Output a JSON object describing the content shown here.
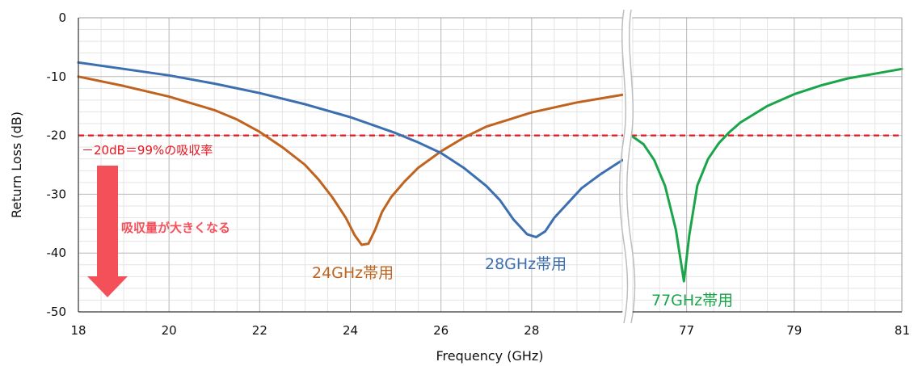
{
  "chart_data": {
    "type": "line",
    "xlabel": "Frequency (GHz)",
    "ylabel": "Return Loss (dB)",
    "ylim": [
      -50,
      0
    ],
    "yticks": [
      0,
      -10,
      -20,
      -30,
      -40,
      -50
    ],
    "xlim_left": [
      18,
      30
    ],
    "xlim_right": [
      76,
      81
    ],
    "xticks_left": [
      18,
      20,
      22,
      24,
      26,
      28
    ],
    "xticks_right": [
      77,
      79,
      81
    ],
    "axis_break": "wavy break between 30 and 76",
    "grid": true,
    "threshold": {
      "y": -20,
      "label": "－20dB＝99%の吸収率",
      "color": "#e8141c"
    },
    "annotation": {
      "text": "吸収量が大きくなる",
      "arrow": "down",
      "color": "#f4505a"
    },
    "series": [
      {
        "name": "24GHz帯用",
        "color": "#c0631e",
        "segment": "left",
        "x": [
          18,
          19,
          20,
          21,
          21.5,
          22,
          22.5,
          23,
          23.3,
          23.6,
          23.9,
          24.1,
          24.25,
          24.4,
          24.55,
          24.7,
          24.9,
          25.2,
          25.5,
          26,
          26.5,
          27,
          28,
          29,
          30
        ],
        "y": [
          -10,
          -11.6,
          -13.4,
          -15.7,
          -17.3,
          -19.4,
          -22,
          -25,
          -27.5,
          -30.5,
          -34,
          -37,
          -38.6,
          -38.4,
          -36,
          -33,
          -30.5,
          -27.8,
          -25.5,
          -22.7,
          -20.4,
          -18.5,
          -16.1,
          -14.4,
          -13.1
        ]
      },
      {
        "name": "28GHz帯用",
        "color": "#3c6fb0",
        "segment": "left",
        "x": [
          18,
          19,
          20,
          21,
          22,
          23,
          24,
          25,
          25.5,
          26,
          26.5,
          27,
          27.3,
          27.6,
          27.9,
          28.1,
          28.3,
          28.5,
          28.8,
          29.1,
          29.5,
          30
        ],
        "y": [
          -7.6,
          -8.7,
          -9.8,
          -11.2,
          -12.8,
          -14.7,
          -16.9,
          -19.6,
          -21.2,
          -23,
          -25.5,
          -28.6,
          -31,
          -34.3,
          -36.8,
          -37.3,
          -36.3,
          -34,
          -31.5,
          -29,
          -26.7,
          -24.2
        ]
      },
      {
        "name": "77GHz帯用",
        "color": "#1aa54a",
        "segment": "right",
        "x": [
          76,
          76.2,
          76.4,
          76.6,
          76.8,
          76.95,
          77.05,
          77.2,
          77.4,
          77.6,
          77.8,
          78,
          78.5,
          79,
          79.5,
          80,
          80.5,
          81
        ],
        "y": [
          -20.2,
          -21.5,
          -24.2,
          -28.6,
          -36,
          -44.8,
          -37,
          -28.5,
          -24,
          -21.3,
          -19.4,
          -17.8,
          -15,
          -13,
          -11.5,
          -10.3,
          -9.5,
          -8.7
        ]
      }
    ]
  }
}
